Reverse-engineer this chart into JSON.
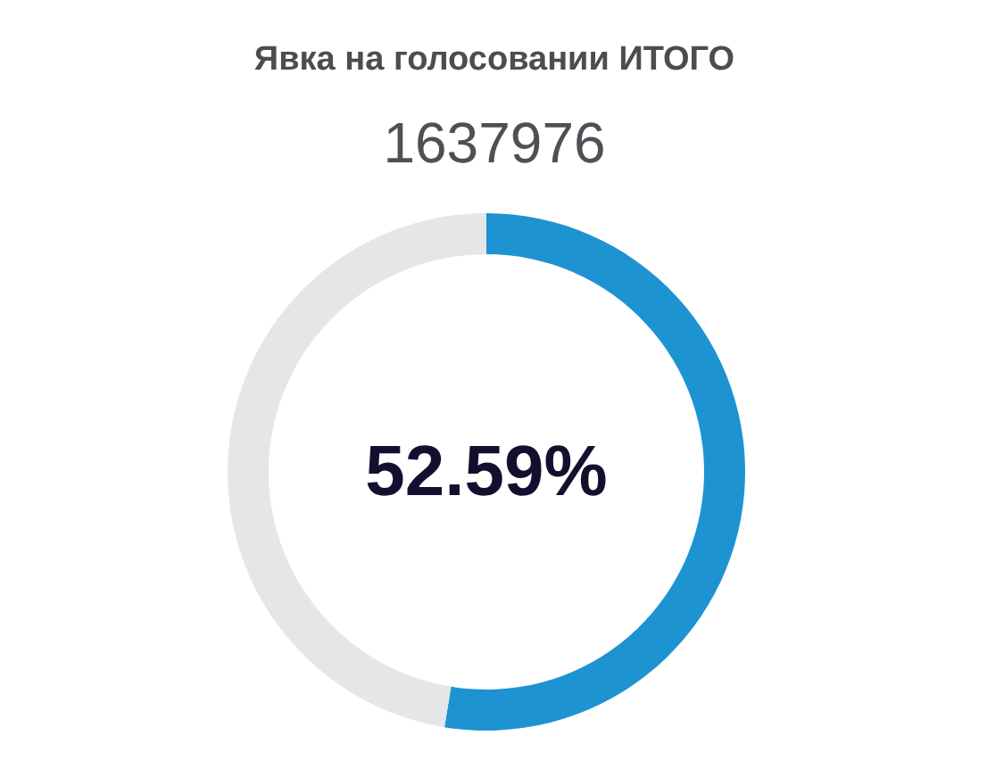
{
  "chart_data": {
    "type": "donut",
    "title": "Явка на голосовании ИТОГО",
    "subtitle": "1637976",
    "categories": [
      null,
      null
    ],
    "values": [
      52.59,
      47.41
    ],
    "colors": [
      "#1e93d2",
      "#e5e6e8"
    ],
    "annotations": [
      "52.59%"
    ]
  }
}
